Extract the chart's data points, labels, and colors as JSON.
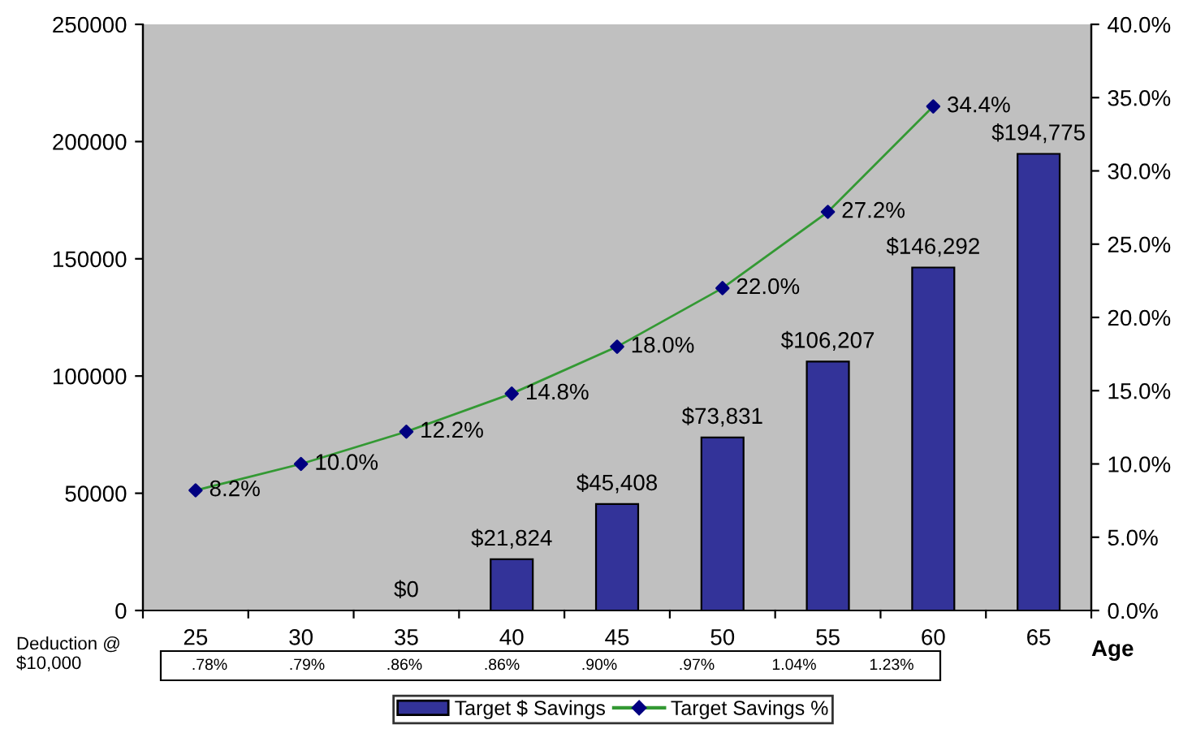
{
  "chart_data": {
    "type": "bar",
    "xlabel": "Age",
    "categories": [
      "25",
      "30",
      "35",
      "40",
      "45",
      "50",
      "55",
      "60",
      "65"
    ],
    "series": [
      {
        "name": "Target $ Savings",
        "color": "#333399",
        "values": [
          null,
          null,
          0,
          21824,
          45408,
          73831,
          106207,
          146292,
          194775
        ],
        "value_labels": [
          null,
          null,
          "$0",
          "$21,824",
          "$45,408",
          "$73,831",
          "$106,207",
          "$146,292",
          "$194,775"
        ]
      },
      {
        "name": "Target Savings %",
        "type": "line",
        "axis": "y2",
        "color": "#339933",
        "colors": [
          "#000080",
          "#000080",
          "#000080",
          "#000080",
          "#000080",
          "#000080",
          "#000080",
          "#000080",
          "#000080"
        ],
        "marker": "diamond",
        "values": [
          8.2,
          10.0,
          12.2,
          14.8,
          18.0,
          22.0,
          27.2,
          34.4,
          null
        ],
        "value_labels": [
          "8.2%",
          "10.0%",
          "12.2%",
          "14.8%",
          "18.0%",
          "22.0%",
          "27.2%",
          "34.4%",
          null
        ]
      }
    ],
    "ylim": [
      0,
      250000
    ],
    "yticks": [
      0,
      50000,
      100000,
      150000,
      200000,
      250000
    ],
    "y2lim": [
      0,
      40
    ],
    "y2ticks": [
      {
        "value": 0,
        "label": "0.0%"
      },
      {
        "value": 5,
        "label": "5.0%"
      },
      {
        "value": 10,
        "label": "10.0%"
      },
      {
        "value": 15,
        "label": "15.0%"
      },
      {
        "value": 20,
        "label": "20.0%"
      },
      {
        "value": 25,
        "label": "25.0%"
      },
      {
        "value": 30,
        "label": "30.0%"
      },
      {
        "value": 35,
        "label": "35.0%"
      },
      {
        "value": 40,
        "label": "40.0%"
      }
    ],
    "annotations": [
      "Deduction @\n$10,000",
      ".78%",
      ".79%",
      ".86%",
      ".86%",
      ".90%",
      ".97%",
      "1.04%",
      "1.23%"
    ],
    "legend": "bottom",
    "grid": false
  }
}
